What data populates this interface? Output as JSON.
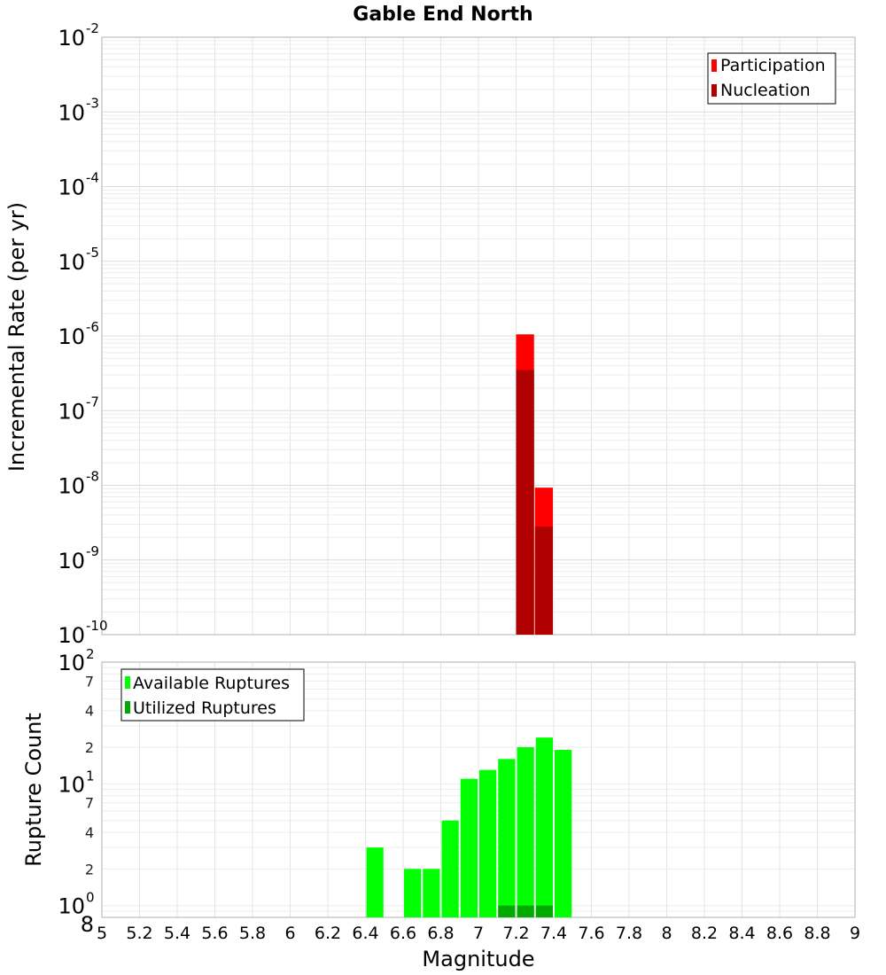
{
  "chart_data": [
    {
      "id": "top",
      "type": "bar",
      "title": "Gable End North",
      "xlabel": "",
      "ylabel": "Incremental Rate (per yr)",
      "yscale": "log",
      "ylim": [
        1e-10,
        0.01
      ],
      "xlim": [
        5,
        9
      ],
      "bin_width": 0.1,
      "y_tick_bases": [
        "10",
        "10",
        "10",
        "10",
        "10",
        "10",
        "10",
        "10",
        "10"
      ],
      "y_tick_exponents": [
        "-10",
        "-9",
        "-8",
        "-7",
        "-6",
        "-5",
        "-4",
        "-3",
        "-2"
      ],
      "y_tick_values": [
        1e-10,
        1e-09,
        1e-08,
        1e-07,
        1e-06,
        1e-05,
        0.0001,
        0.001,
        0.01
      ],
      "series": [
        {
          "name": "Participation",
          "color": "#ff0000",
          "points": [
            {
              "x": 7.25,
              "y": 1.05e-06
            },
            {
              "x": 7.35,
              "y": 9.3e-09
            }
          ]
        },
        {
          "name": "Nucleation",
          "color": "#b00000",
          "points": [
            {
              "x": 7.25,
              "y": 3.5e-07
            },
            {
              "x": 7.35,
              "y": 2.8e-09
            }
          ]
        }
      ],
      "legend_position": "top-right"
    },
    {
      "id": "bottom",
      "type": "bar",
      "xlabel": "Magnitude",
      "ylabel": "Rupture Count",
      "yscale": "log",
      "ylim": [
        0.8,
        100
      ],
      "xlim": [
        5,
        9
      ],
      "bin_width": 0.1,
      "x_ticks": [
        "5",
        "5.2",
        "5.4",
        "5.6",
        "5.8",
        "6",
        "6.2",
        "6.4",
        "6.6",
        "6.8",
        "7",
        "7.2",
        "7.4",
        "7.6",
        "7.8",
        "8",
        "8.2",
        "8.4",
        "8.6",
        "8.8",
        "9"
      ],
      "y_major_ticks": [
        {
          "value": 1,
          "base": "10",
          "exp": "0"
        },
        {
          "value": 10,
          "base": "10",
          "exp": "1"
        },
        {
          "value": 100,
          "base": "10",
          "exp": "2"
        }
      ],
      "y_minor_ticks": [
        {
          "value": 0.8,
          "label": "8"
        },
        {
          "value": 2,
          "label": "2"
        },
        {
          "value": 4,
          "label": "4"
        },
        {
          "value": 7,
          "label": "7"
        },
        {
          "value": 20,
          "label": "2"
        },
        {
          "value": 40,
          "label": "4"
        },
        {
          "value": 70,
          "label": "7"
        }
      ],
      "series": [
        {
          "name": "Available Ruptures",
          "color": "#00ff00",
          "points": [
            {
              "x": 6.45,
              "y": 3
            },
            {
              "x": 6.65,
              "y": 2
            },
            {
              "x": 6.75,
              "y": 2
            },
            {
              "x": 6.85,
              "y": 5
            },
            {
              "x": 6.95,
              "y": 11
            },
            {
              "x": 7.05,
              "y": 13
            },
            {
              "x": 7.15,
              "y": 16
            },
            {
              "x": 7.25,
              "y": 20
            },
            {
              "x": 7.35,
              "y": 24
            },
            {
              "x": 7.45,
              "y": 19
            }
          ]
        },
        {
          "name": "Utilized Ruptures",
          "color": "#00aa00",
          "points": [
            {
              "x": 7.15,
              "y": 1
            },
            {
              "x": 7.25,
              "y": 1
            },
            {
              "x": 7.35,
              "y": 1
            }
          ]
        }
      ],
      "legend_position": "top-left"
    }
  ]
}
